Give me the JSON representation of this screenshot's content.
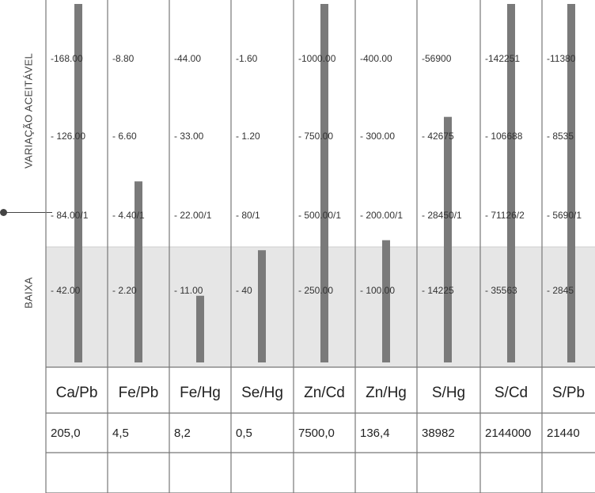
{
  "side_labels": {
    "high": "VARIAÇÃO ACEITÁVEL",
    "low": "BAIXA"
  },
  "colors": {
    "bar": "#7a7a7a",
    "grid": "#777777",
    "low_band": "#e6e6e6",
    "text": "#333333"
  },
  "chart_data": {
    "type": "bar",
    "categories": [
      "Ca/Pb",
      "Fe/Pb",
      "Fe/Hg",
      "Se/Hg",
      "Zn/Cd",
      "Zn/Hg",
      "S/Hg",
      "S/Cd",
      "S/Pb"
    ],
    "scale_labels": [
      [
        "-168.00",
        "- 126.00",
        "- 84.00/1",
        "- 42.00"
      ],
      [
        "-8.80",
        "- 6.60",
        "- 4.40/1",
        "- 2.20"
      ],
      [
        "-44.00",
        "- 33.00",
        "- 22.00/1",
        "- 11.00"
      ],
      [
        "-1.60",
        "- 1.20",
        "- 80/1",
        "- 40"
      ],
      [
        "-1000.00",
        "- 750.00",
        "- 500.00/1",
        "- 250.00"
      ],
      [
        "-400.00",
        "- 300.00",
        "- 200.00/1",
        "- 100.00"
      ],
      [
        "-56900",
        "- 42675",
        "- 28450/1",
        "- 14225"
      ],
      [
        "-142251",
        "- 106688",
        "- 71126/2",
        "- 35563"
      ],
      [
        "-11380",
        "- 8535",
        "- 5690/1",
        "- 2845"
      ]
    ],
    "values": [
      205.0,
      4.5,
      8.2,
      0.5,
      7500.0,
      136.4,
      38982,
      2144000,
      21440
    ],
    "value_labels": [
      "205,0",
      "4,5",
      "8,2",
      "0,5",
      "7500,0",
      "136,4",
      "38982",
      "2144000",
      "21440"
    ],
    "series_bar_levels": [
      1.0,
      0.505,
      0.186,
      0.313,
      1.0,
      0.341,
      0.685,
      1.0,
      1.0
    ],
    "scale_max_per_column": [
      168,
      8.8,
      44,
      1.6,
      1000,
      400,
      56900,
      142251,
      11380
    ]
  }
}
